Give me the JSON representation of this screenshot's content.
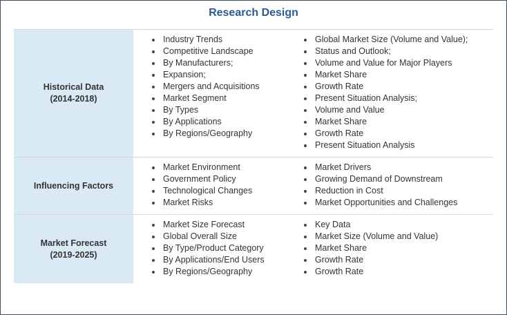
{
  "title": "Research Design",
  "rows": [
    {
      "label": "Historical Data",
      "sublabel": "(2014-2018)",
      "left": [
        "Industry Trends",
        "Competitive Landscape",
        "By Manufacturers;",
        "Expansion;",
        "Mergers and Acquisitions",
        "Market Segment",
        "By Types",
        "By Applications",
        "By Regions/Geography"
      ],
      "right": [
        "Global Market Size (Volume and Value);",
        "Status and Outlook;",
        "Volume and Value for Major Players",
        "Market Share",
        "Growth Rate",
        "Present Situation Analysis;",
        "Volume and Value",
        "Market Share",
        "Growth Rate",
        "Present Situation Analysis"
      ]
    },
    {
      "label": "Influencing Factors",
      "sublabel": "",
      "left": [
        "Market Environment",
        "Government Policy",
        "Technological Changes",
        "Market Risks"
      ],
      "right": [
        "Market Drivers",
        "Growing Demand of Downstream",
        "Reduction in Cost",
        "Market Opportunities and Challenges"
      ]
    },
    {
      "label": "Market Forecast",
      "sublabel": "(2019-2025)",
      "left": [
        "Market Size Forecast",
        "Global Overall Size",
        "By Type/Product Category",
        "By Applications/End Users",
        "By Regions/Geography"
      ],
      "right": [
        "Key Data",
        "Market Size (Volume and Value)",
        "Market Share",
        "Growth Rate",
        "Growth Rate"
      ]
    }
  ],
  "colors": {
    "title": "#2b5a96",
    "header_bg": "#daeaf4",
    "border": "#3f4f63"
  }
}
